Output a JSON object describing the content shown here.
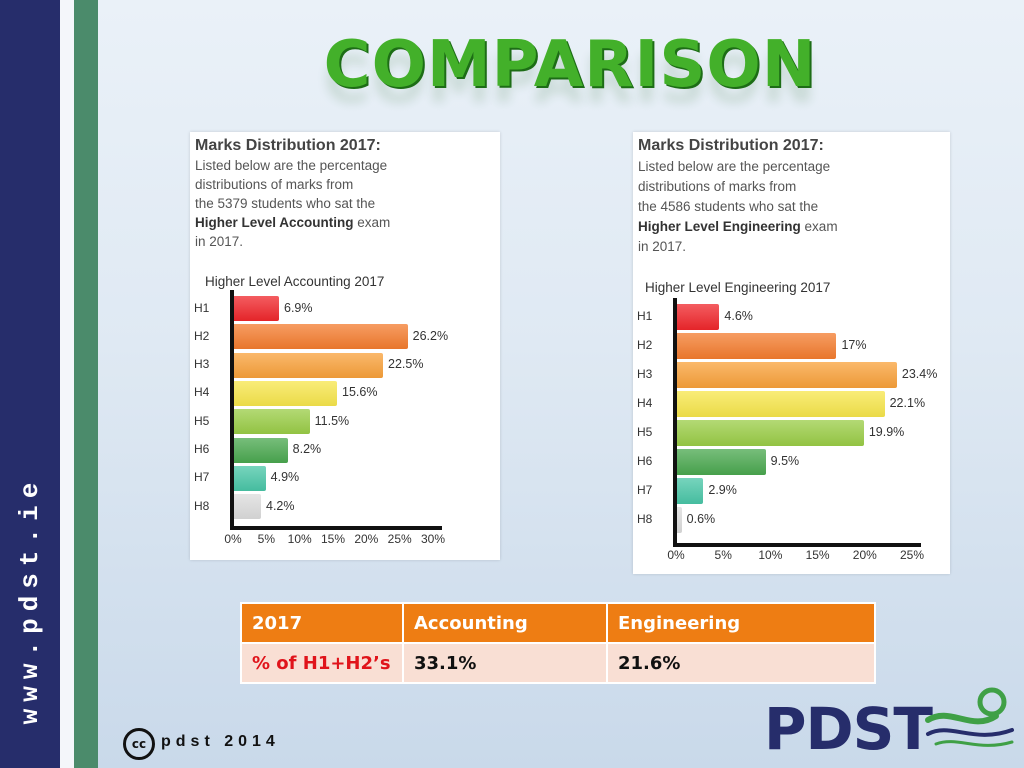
{
  "sidebar": {
    "url": "www.pdst.ie"
  },
  "title": "COMPARISON",
  "panels": [
    {
      "heading": "Marks Distribution 2017:",
      "desc_line1": "Listed below are the percentage",
      "desc_line2": "distributions of marks from",
      "desc_line3": "the 5379 students who sat the",
      "desc_bold": "Higher Level Accounting",
      "desc_tail": " exam",
      "desc_line5": "in 2017."
    },
    {
      "heading": "Marks Distribution 2017:",
      "desc_line1": "Listed below are the percentage",
      "desc_line2": "distributions of marks from",
      "desc_line3": "the 4586 students who sat the",
      "desc_bold": "Higher Level Engineering",
      "desc_tail": " exam",
      "desc_line5": "in 2017."
    }
  ],
  "chart_data": [
    {
      "type": "bar",
      "orientation": "horizontal",
      "title": "Higher Level Accounting 2017",
      "categories": [
        "H1",
        "H2",
        "H3",
        "H4",
        "H5",
        "H6",
        "H7",
        "H8"
      ],
      "values": [
        6.9,
        26.2,
        22.5,
        15.6,
        11.5,
        8.2,
        4.9,
        4.2
      ],
      "value_labels": [
        "6.9%",
        "26.2%",
        "22.5%",
        "15.6%",
        "11.5%",
        "8.2%",
        "4.9%",
        "4.2%"
      ],
      "colors": [
        "#f0262b",
        "#f47c2e",
        "#f9a13a",
        "#f7e64b",
        "#9acd46",
        "#4aa84f",
        "#49c6a7",
        "#dcdcdc"
      ],
      "xlim": [
        0,
        30
      ],
      "xticks": [
        "0%",
        "5%",
        "10%",
        "15%",
        "20%",
        "25%",
        "30%"
      ]
    },
    {
      "type": "bar",
      "orientation": "horizontal",
      "title": "Higher Level Engineering 2017",
      "categories": [
        "H1",
        "H2",
        "H3",
        "H4",
        "H5",
        "H6",
        "H7",
        "H8"
      ],
      "values": [
        4.6,
        17,
        23.4,
        22.1,
        19.9,
        9.5,
        2.9,
        0.6
      ],
      "value_labels": [
        "4.6%",
        "17%",
        "23.4%",
        "22.1%",
        "19.9%",
        "9.5%",
        "2.9%",
        "0.6%"
      ],
      "colors": [
        "#f0262b",
        "#f47c2e",
        "#f9a13a",
        "#f7e64b",
        "#9acd46",
        "#4aa84f",
        "#49c6a7",
        "#dcdcdc"
      ],
      "xlim": [
        0,
        25
      ],
      "xticks": [
        "0%",
        "5%",
        "10%",
        "15%",
        "20%",
        "25%"
      ]
    }
  ],
  "table": {
    "headers": [
      "2017",
      "Accounting",
      "Engineering"
    ],
    "row": [
      "% of H1+H2’s",
      "33.1%",
      "21.6%"
    ]
  },
  "footer": {
    "cc": "cc",
    "text": "pdst 2014"
  },
  "logo": {
    "text": "PDST"
  },
  "colors": {
    "navy": "#262d6b",
    "green": "#4b8b6b",
    "title_green": "#43b02a",
    "table_orange": "#ee7d13",
    "table_row": "#f9dfd4",
    "label_red": "#e0141b"
  }
}
